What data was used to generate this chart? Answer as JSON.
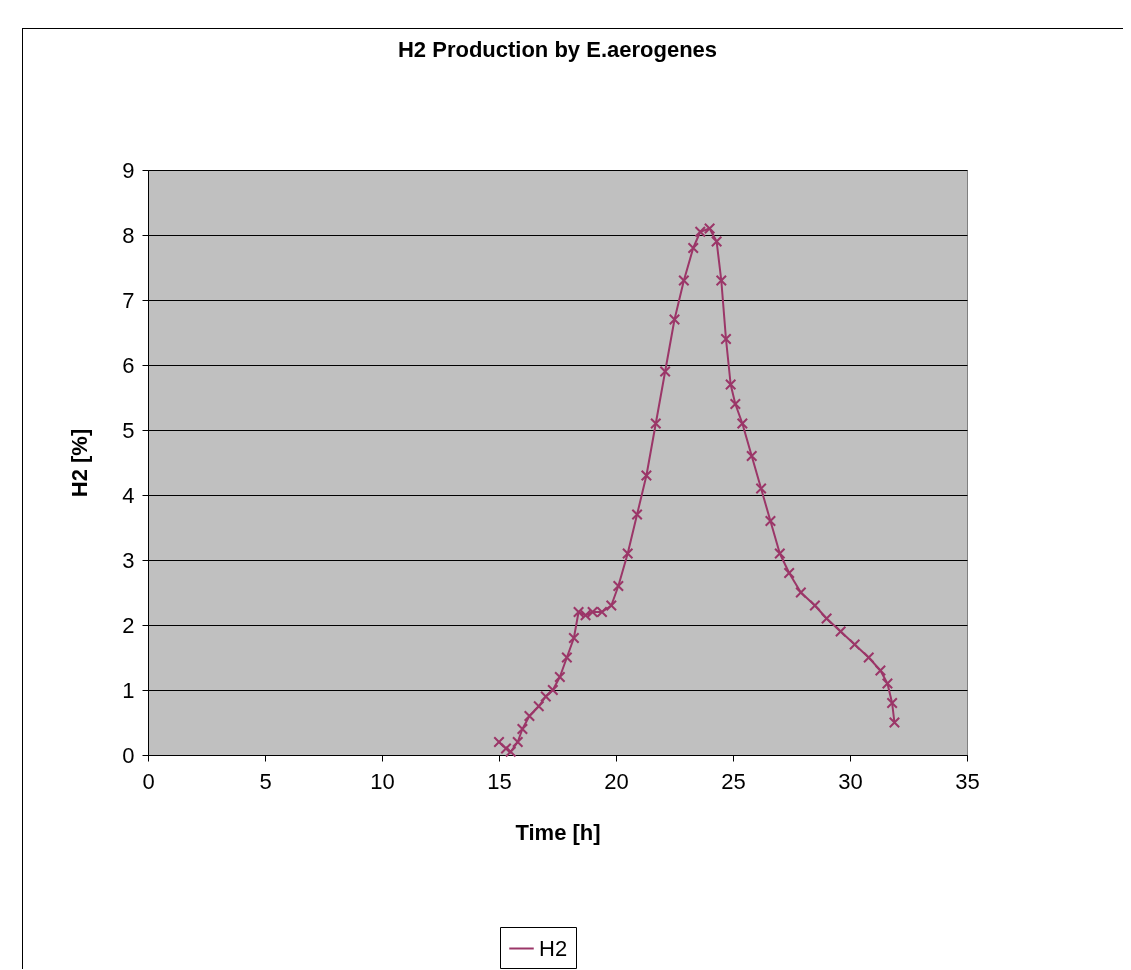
{
  "chart_data": {
    "type": "line",
    "title": "H2 Production by E.aerogenes",
    "xlabel": "Time [h]",
    "ylabel": "H2 [%]",
    "series": [
      {
        "name": "H2",
        "color": "#9b3668",
        "x": [
          15.0,
          15.3,
          15.5,
          15.8,
          16.0,
          16.3,
          16.7,
          17.0,
          17.3,
          17.6,
          17.9,
          18.2,
          18.4,
          18.7,
          19.0,
          19.4,
          19.8,
          20.1,
          20.5,
          20.9,
          21.3,
          21.7,
          22.1,
          22.5,
          22.9,
          23.3,
          23.6,
          24.0,
          24.3,
          24.5,
          24.7,
          24.9,
          25.1,
          25.4,
          25.8,
          26.2,
          26.6,
          27.0,
          27.4,
          27.9,
          28.5,
          29.0,
          29.6,
          30.2,
          30.8,
          31.3,
          31.6,
          31.8,
          31.9
        ],
        "values": [
          0.2,
          0.1,
          0.05,
          0.2,
          0.4,
          0.6,
          0.75,
          0.9,
          1.0,
          1.2,
          1.5,
          1.8,
          2.2,
          2.15,
          2.2,
          2.2,
          2.3,
          2.6,
          3.1,
          3.7,
          4.3,
          5.1,
          5.9,
          6.7,
          7.3,
          7.8,
          8.05,
          8.1,
          7.9,
          7.3,
          6.4,
          5.7,
          5.4,
          5.1,
          4.6,
          4.1,
          3.6,
          3.1,
          2.8,
          2.5,
          2.3,
          2.1,
          1.9,
          1.7,
          1.5,
          1.3,
          1.1,
          0.8,
          0.5
        ]
      }
    ],
    "xlim": [
      0,
      35
    ],
    "xticks": [
      0,
      5,
      10,
      15,
      20,
      25,
      30,
      35
    ],
    "ylim": [
      0,
      9
    ],
    "yticks": [
      0,
      1,
      2,
      3,
      4,
      5,
      6,
      7,
      8,
      9
    ],
    "grid": "y",
    "legend": "bottom",
    "marker": "cross",
    "line_style": "solid"
  }
}
